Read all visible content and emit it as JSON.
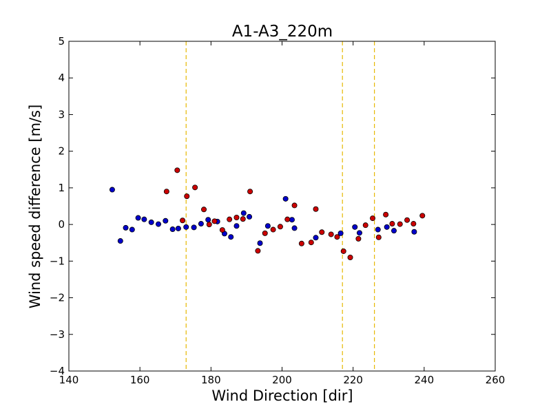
{
  "chart_data": {
    "type": "scatter",
    "title": "A1-A3_220m",
    "xlabel": "Wind Direction [dir]",
    "ylabel": "Wind speed difference [m/s]",
    "xlim": [
      140,
      260
    ],
    "ylim": [
      -4,
      5
    ],
    "xticks": [
      "140",
      "160",
      "180",
      "200",
      "220",
      "240",
      "260"
    ],
    "yticks": [
      "−4",
      "−3",
      "−2",
      "−1",
      "0",
      "1",
      "2",
      "3",
      "4",
      "5"
    ],
    "grid": false,
    "vlines": {
      "x": [
        173,
        217,
        226
      ],
      "color": "#e6b800",
      "style": "dashed"
    },
    "series": [
      {
        "color": "#0000cc",
        "points": [
          [
            152.2,
            0.95
          ],
          [
            154.5,
            -0.45
          ],
          [
            156.0,
            -0.09
          ],
          [
            157.8,
            -0.14
          ],
          [
            159.5,
            0.18
          ],
          [
            161.2,
            0.14
          ],
          [
            163.2,
            0.06
          ],
          [
            165.2,
            0.01
          ],
          [
            167.2,
            0.1
          ],
          [
            169.2,
            -0.13
          ],
          [
            170.8,
            -0.11
          ],
          [
            173.0,
            -0.07
          ],
          [
            175.2,
            -0.08
          ],
          [
            177.2,
            0.02
          ],
          [
            179.2,
            0.13
          ],
          [
            181.8,
            0.08
          ],
          [
            183.8,
            -0.25
          ],
          [
            185.6,
            -0.34
          ],
          [
            187.2,
            -0.04
          ],
          [
            189.2,
            0.31
          ],
          [
            190.8,
            0.21
          ],
          [
            193.8,
            -0.51
          ],
          [
            196.0,
            -0.04
          ],
          [
            201.0,
            0.7
          ],
          [
            202.8,
            0.13
          ],
          [
            203.5,
            -0.1
          ],
          [
            209.5,
            -0.36
          ],
          [
            216.5,
            -0.24
          ],
          [
            220.5,
            -0.07
          ],
          [
            221.8,
            -0.23
          ],
          [
            227.0,
            -0.14
          ],
          [
            229.5,
            -0.07
          ],
          [
            231.5,
            -0.17
          ],
          [
            237.2,
            -0.2
          ]
        ]
      },
      {
        "color": "#cc0000",
        "points": [
          [
            167.5,
            0.9
          ],
          [
            170.5,
            1.48
          ],
          [
            172.0,
            0.11
          ],
          [
            173.2,
            0.77
          ],
          [
            175.5,
            1.01
          ],
          [
            178.0,
            0.41
          ],
          [
            179.5,
            0.0
          ],
          [
            181.0,
            0.09
          ],
          [
            183.2,
            -0.15
          ],
          [
            185.2,
            0.14
          ],
          [
            187.2,
            0.19
          ],
          [
            189.0,
            0.15
          ],
          [
            191.0,
            0.9
          ],
          [
            193.2,
            -0.72
          ],
          [
            195.2,
            -0.24
          ],
          [
            197.5,
            -0.14
          ],
          [
            199.5,
            -0.06
          ],
          [
            201.5,
            0.14
          ],
          [
            203.5,
            0.52
          ],
          [
            205.5,
            -0.52
          ],
          [
            208.2,
            -0.49
          ],
          [
            209.5,
            0.42
          ],
          [
            211.2,
            -0.21
          ],
          [
            213.8,
            -0.27
          ],
          [
            215.5,
            -0.34
          ],
          [
            217.3,
            -0.73
          ],
          [
            219.2,
            -0.9
          ],
          [
            221.5,
            -0.39
          ],
          [
            223.5,
            -0.02
          ],
          [
            225.5,
            0.17
          ],
          [
            227.2,
            -0.35
          ],
          [
            229.2,
            0.27
          ],
          [
            231.0,
            0.02
          ],
          [
            233.2,
            0.01
          ],
          [
            235.2,
            0.12
          ],
          [
            237.0,
            0.02
          ],
          [
            239.5,
            0.24
          ]
        ]
      }
    ]
  }
}
